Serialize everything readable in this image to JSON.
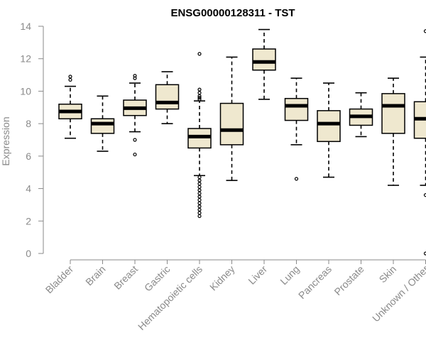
{
  "chart_data": {
    "type": "box",
    "title": "ENSG00000128311 - TST",
    "ylabel": "Expression",
    "xlabel": "",
    "ylim": [
      0,
      14
    ],
    "yticks": [
      0,
      2,
      4,
      6,
      8,
      10,
      12,
      14
    ],
    "grid": false,
    "colors": {
      "box_fill": "#efe8cf",
      "stroke": "#000000",
      "axis": "#8a8a8a"
    },
    "categories": [
      "Bladder",
      "Brain",
      "Breast",
      "Gastric",
      "Hematopoietic cells",
      "Kidney",
      "Liver",
      "Lung",
      "Pancreas",
      "Prostate",
      "Skin",
      "Unknown / Other"
    ],
    "boxes": [
      {
        "min": 7.1,
        "q1": 8.3,
        "median": 8.75,
        "q3": 9.2,
        "max": 10.3,
        "outliers": [
          10.7,
          10.9
        ]
      },
      {
        "min": 6.3,
        "q1": 7.4,
        "median": 8.0,
        "q3": 8.3,
        "max": 9.7,
        "outliers": []
      },
      {
        "min": 7.5,
        "q1": 8.5,
        "median": 8.95,
        "q3": 9.45,
        "max": 10.5,
        "outliers": [
          10.8,
          10.95,
          7.0,
          6.1
        ]
      },
      {
        "min": 8.0,
        "q1": 8.9,
        "median": 9.3,
        "q3": 10.4,
        "max": 11.2,
        "outliers": []
      },
      {
        "min": 4.8,
        "q1": 6.5,
        "median": 7.2,
        "q3": 7.7,
        "max": 9.4,
        "outliers": [
          12.3,
          10.1,
          9.9,
          9.7,
          9.6,
          9.5,
          4.7,
          4.5,
          4.3,
          4.1,
          3.9,
          3.7,
          3.5,
          3.3,
          3.1,
          2.9,
          2.7,
          2.5,
          2.3
        ]
      },
      {
        "min": 4.5,
        "q1": 6.7,
        "median": 7.6,
        "q3": 9.25,
        "max": 12.1,
        "outliers": []
      },
      {
        "min": 9.5,
        "q1": 11.3,
        "median": 11.8,
        "q3": 12.6,
        "max": 13.8,
        "outliers": []
      },
      {
        "min": 6.7,
        "q1": 8.2,
        "median": 9.1,
        "q3": 9.55,
        "max": 10.8,
        "outliers": [
          4.6
        ]
      },
      {
        "min": 4.7,
        "q1": 6.9,
        "median": 8.0,
        "q3": 8.8,
        "max": 10.5,
        "outliers": []
      },
      {
        "min": 7.2,
        "q1": 7.9,
        "median": 8.45,
        "q3": 8.9,
        "max": 9.9,
        "outliers": []
      },
      {
        "min": 4.2,
        "q1": 7.4,
        "median": 9.1,
        "q3": 9.85,
        "max": 10.8,
        "outliers": []
      },
      {
        "min": 4.2,
        "q1": 7.1,
        "median": 8.3,
        "q3": 9.35,
        "max": 12.1,
        "outliers": [
          13.7,
          3.6,
          0.0
        ]
      }
    ]
  }
}
